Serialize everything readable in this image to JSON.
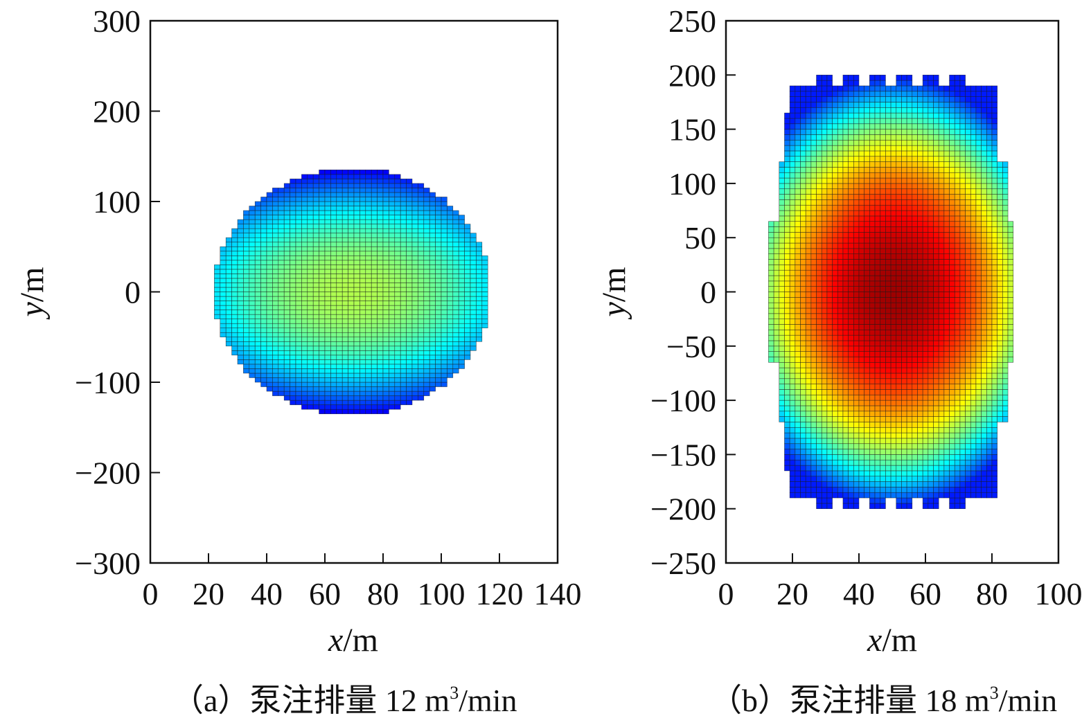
{
  "chart_data": [
    {
      "type": "heatmap",
      "caption": {
        "prefix": "（a）泵注排量 12 m",
        "sup": "3",
        "suffix": "/min"
      },
      "xlabel": {
        "var": "x",
        "unit": "/m"
      },
      "ylabel": {
        "var": "y",
        "unit": "/m"
      },
      "xlim": [
        0,
        140
      ],
      "ylim": [
        -300,
        300
      ],
      "xticks": [
        0,
        20,
        40,
        60,
        80,
        100,
        120,
        140
      ],
      "yticks": [
        300,
        200,
        100,
        0,
        -100,
        -200,
        -300
      ],
      "tick_labels_x": [
        "0",
        "20",
        "40",
        "60",
        "80",
        "100",
        "120",
        "140"
      ],
      "tick_labels_y": [
        "300",
        "200",
        "100",
        "0",
        "−100",
        "−200",
        "−300"
      ],
      "grid": false,
      "colormap": "jet",
      "cell_size": {
        "dx": 2,
        "dy": 5
      },
      "region": {
        "shape": "ellipse",
        "x_center": 69.5,
        "x_half_width": 47.5,
        "y_half_height": 137,
        "y_max": 137,
        "y_min": -137,
        "x_left_edge": 22,
        "x_right_edge": 117
      },
      "field_peak": {
        "x": 70,
        "y": 0,
        "level": 0.55
      },
      "field_edge_level": 0.1
    },
    {
      "type": "heatmap",
      "caption": {
        "prefix": "（b）泵注排量 18 m",
        "sup": "3",
        "suffix": "/min"
      },
      "xlabel": {
        "var": "x",
        "unit": "/m"
      },
      "ylabel": {
        "var": "y",
        "unit": "/m"
      },
      "xlim": [
        0,
        100
      ],
      "ylim": [
        -250,
        250
      ],
      "xticks": [
        0,
        20,
        40,
        60,
        80,
        100
      ],
      "yticks": [
        250,
        200,
        150,
        100,
        50,
        0,
        -50,
        -100,
        -150,
        -200,
        -250
      ],
      "tick_labels_x": [
        "0",
        "20",
        "40",
        "60",
        "80",
        "100"
      ],
      "tick_labels_y": [
        "250",
        "200",
        "150",
        "100",
        "50",
        "0",
        "−50",
        "−100",
        "−150",
        "−200",
        "−250"
      ],
      "grid": false,
      "colormap": "jet",
      "cell_size": {
        "dx": 1.6,
        "dy": 5
      },
      "region": {
        "shape": "stepped-rectangle",
        "x_center": 50.5,
        "y_max": 198,
        "y_min": -198,
        "x_left_edge": 13,
        "x_right_edge": 86,
        "body_x_range": [
          19,
          83
        ],
        "body_y_range": [
          -190,
          190
        ]
      },
      "field_peak": {
        "x": 50,
        "y": 0,
        "level": 0.97
      },
      "field_edge_level": 0.35
    }
  ]
}
